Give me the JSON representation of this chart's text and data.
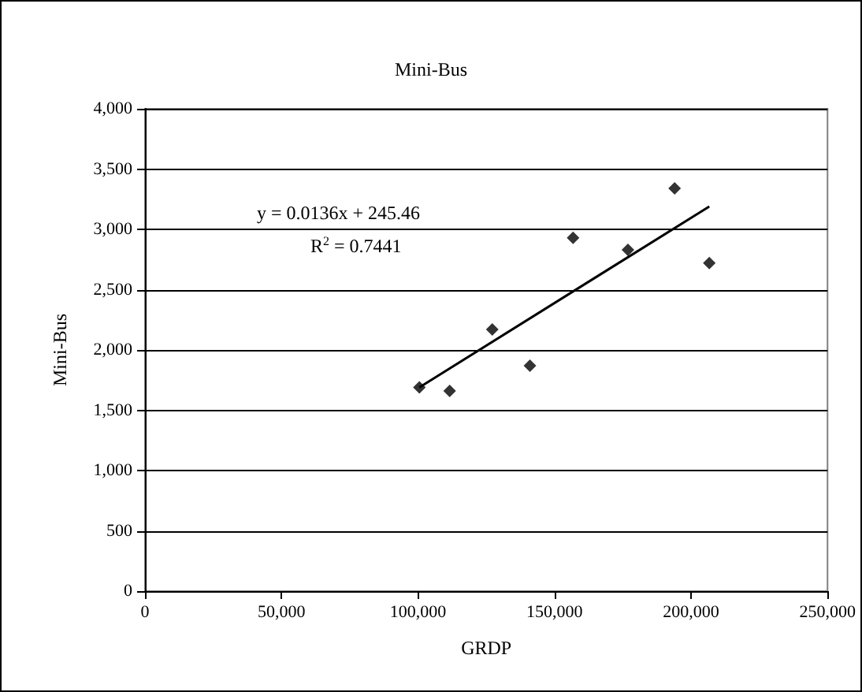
{
  "chart_data": {
    "type": "scatter",
    "title": "Mini-Bus",
    "xlabel": "GRDP",
    "ylabel": "Mini-Bus",
    "series": [
      {
        "type": "scatter",
        "color": "#000000",
        "marker": "diamond",
        "x": [
          100500,
          111600,
          127200,
          141000,
          156800,
          176900,
          194000,
          206700
        ],
        "values": [
          1690,
          1660,
          2170,
          1870,
          2930,
          2830,
          3340,
          2720
        ]
      },
      {
        "type": "line",
        "color": "#000000",
        "marker": "none",
        "line_style": "solid",
        "x": [
          100500,
          206700
        ],
        "values": [
          1690,
          3190
        ]
      }
    ],
    "annotations": [
      "y = 0.0136x + 245.46",
      "R$^{2}$ = 0.7441"
    ],
    "xlim": [
      0,
      250000
    ],
    "xticks": [
      {
        "value": 0,
        "label": "0"
      },
      {
        "value": 50000,
        "label": "50,000"
      },
      {
        "value": 100000,
        "label": "100,000"
      },
      {
        "value": 150000,
        "label": "150,000"
      },
      {
        "value": 200000,
        "label": "200,000"
      },
      {
        "value": 250000,
        "label": "250,000"
      }
    ],
    "ylim": [
      0,
      4000
    ],
    "yticks": [
      {
        "value": 0,
        "label": "0"
      },
      {
        "value": 500,
        "label": "500"
      },
      {
        "value": 1000,
        "label": "1,000"
      },
      {
        "value": 1500,
        "label": "1,500"
      },
      {
        "value": 2000,
        "label": "2,000"
      },
      {
        "value": 2500,
        "label": "2,500"
      },
      {
        "value": 3000,
        "label": "3,000"
      },
      {
        "value": 3500,
        "label": "3,500"
      },
      {
        "value": 4000,
        "label": "4,000"
      }
    ],
    "grid": "y"
  }
}
